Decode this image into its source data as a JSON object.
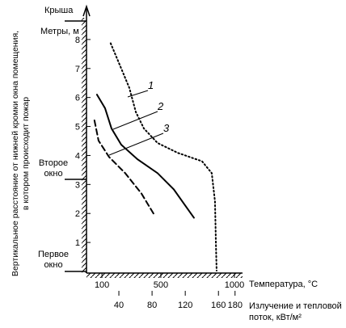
{
  "chart_data": {
    "type": "line",
    "y_label_lines": [
      "Вертикальное расстояние от нижней кромки окна помещения,",
      "в котором происходит пожар"
    ],
    "roof_label": "Крыша",
    "y_unit_label": "Метры, м",
    "window2_label": [
      "Второе",
      "окно"
    ],
    "window1_label": [
      "Первое",
      "окно"
    ],
    "x_label": "Температура, °С",
    "x2_label_lines": [
      "Излучение и тепловой",
      "поток, кВт/м²"
    ],
    "ylim": [
      0,
      9
    ],
    "yticks": [
      1,
      2,
      3,
      4,
      5,
      6,
      7,
      8
    ],
    "xlim": [
      -5,
      1055
    ],
    "xticks": [
      100,
      500,
      1000
    ],
    "x2lim": [
      1,
      189
    ],
    "x2ticks": [
      40,
      80,
      120,
      160,
      180
    ],
    "series": [
      {
        "name": "1",
        "style": "dotted",
        "color": "#000",
        "x": [
          159,
          231,
          286,
          330,
          385,
          478,
          615,
          780,
          846,
          868,
          874,
          879
        ],
        "values": [
          7.87,
          7.0,
          6.33,
          5.5,
          4.93,
          4.43,
          4.09,
          3.8,
          3.39,
          2.41,
          1.0,
          0.03
        ]
      },
      {
        "name": "2",
        "style": "solid",
        "color": "#000",
        "x": [
          66,
          121,
          165,
          231,
          341,
          478,
          588,
          725
        ],
        "values": [
          6.1,
          5.63,
          4.93,
          4.37,
          3.87,
          3.39,
          2.83,
          1.85
        ]
      },
      {
        "name": "3",
        "style": "dashed",
        "color": "#000",
        "x": [
          49,
          77,
          148,
          258,
          368,
          451
        ],
        "values": [
          5.21,
          4.51,
          3.95,
          3.39,
          2.69,
          1.99
        ]
      }
    ]
  }
}
